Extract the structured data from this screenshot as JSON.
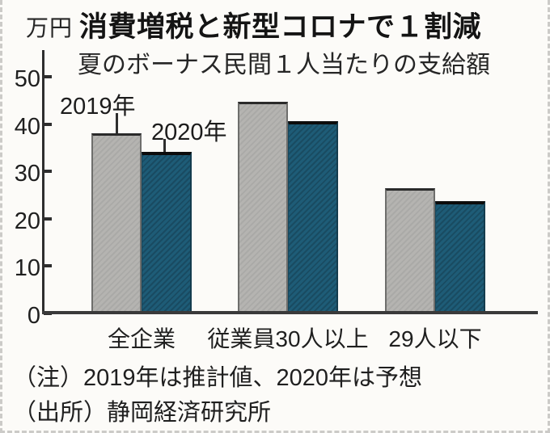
{
  "unit_label": "万円",
  "title": "消費増税と新型コロナで１割減",
  "subtitle": "夏のボーナス民間１人当たりの支給額",
  "note": "（注）2019年は推計値、2020年は予想",
  "source": "（出所）静岡経済研究所",
  "chart_data": {
    "type": "bar",
    "title": "消費増税と新型コロナで１割減",
    "subtitle": "夏のボーナス民間１人当たりの支給額",
    "unit": "万円",
    "categories": [
      "全企業",
      "従業員30人以上",
      "29人以下"
    ],
    "series": [
      {
        "name": "2019年",
        "color": "#b5b4b1",
        "values": [
          38.0,
          44.7,
          26.4
        ]
      },
      {
        "name": "2020年",
        "color": "#1e5c77",
        "values": [
          34.2,
          40.6,
          23.7
        ]
      }
    ],
    "ylim": [
      0,
      50
    ],
    "yticks": [
      0,
      10,
      20,
      30,
      40,
      50
    ],
    "grid": false,
    "legend_position": "labels-above-first-group-with-connector-lines",
    "note": "（注）2019年は推計値、2020年は予想",
    "source": "（出所）静岡経済研究所"
  },
  "colors": {
    "background": "#fcfbf8",
    "axis": "#2e2e2e",
    "text": "#1c1c1c",
    "series_2019": "#b5b4b1",
    "series_2020": "#1e5c77",
    "edge_dashes": "#cccbc8"
  }
}
